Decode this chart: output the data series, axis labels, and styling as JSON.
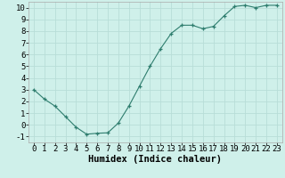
{
  "x": [
    0,
    1,
    2,
    3,
    4,
    5,
    6,
    7,
    8,
    9,
    10,
    11,
    12,
    13,
    14,
    15,
    16,
    17,
    18,
    19,
    20,
    21,
    22,
    23
  ],
  "y": [
    3,
    2.2,
    1.6,
    0.7,
    -0.2,
    -0.8,
    -0.72,
    -0.68,
    0.15,
    1.6,
    3.3,
    5.0,
    6.5,
    7.8,
    8.5,
    8.5,
    8.2,
    8.4,
    9.3,
    10.1,
    10.2,
    10.0,
    10.2,
    10.2
  ],
  "line_color": "#2e7d6e",
  "marker": "+",
  "bg_color": "#cff0ea",
  "grid_major_color": "#b8ddd8",
  "grid_minor_color": "#d8eeea",
  "xlabel": "Humidex (Indice chaleur)",
  "xlim": [
    -0.5,
    23.5
  ],
  "ylim": [
    -1.5,
    10.5
  ],
  "yticks": [
    -1,
    0,
    1,
    2,
    3,
    4,
    5,
    6,
    7,
    8,
    9,
    10
  ],
  "xticks": [
    0,
    1,
    2,
    3,
    4,
    5,
    6,
    7,
    8,
    9,
    10,
    11,
    12,
    13,
    14,
    15,
    16,
    17,
    18,
    19,
    20,
    21,
    22,
    23
  ],
  "tick_fontsize": 6.5,
  "xlabel_fontsize": 7.5
}
